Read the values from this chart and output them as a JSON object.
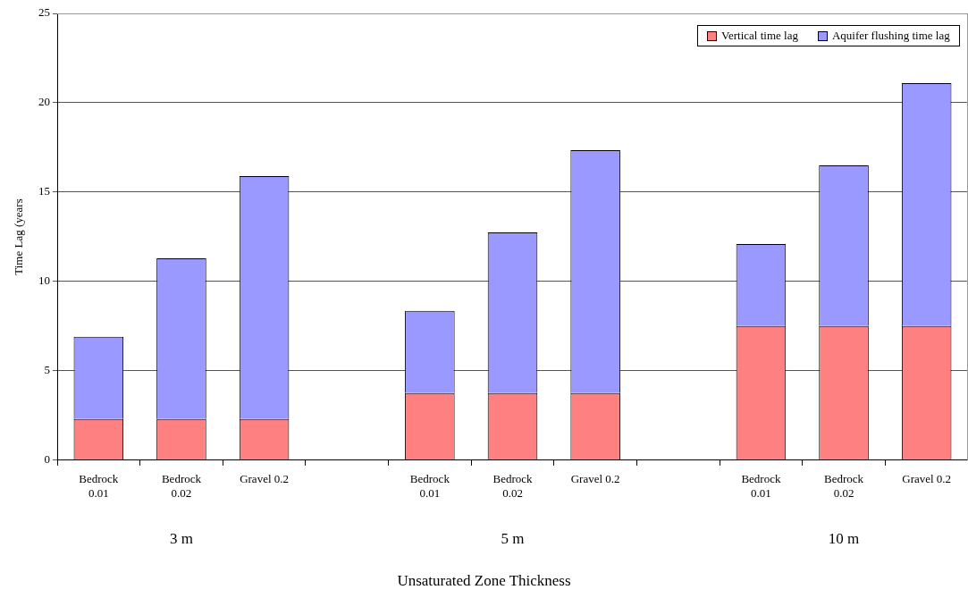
{
  "chart_data": {
    "type": "bar",
    "stacked": true,
    "categories": [
      "Bedrock 0.01",
      "Bedrock 0.02",
      "Gravel 0.2",
      null,
      "Bedrock 0.01",
      "Bedrock 0.02",
      "Gravel 0.2",
      null,
      "Bedrock 0.01",
      "Bedrock 0.02",
      "Gravel 0.2"
    ],
    "series": [
      {
        "name": "Vertical time lag",
        "color": "#ff8080",
        "values": [
          2.3,
          2.3,
          2.3,
          null,
          3.75,
          3.75,
          3.75,
          null,
          7.5,
          7.5,
          7.5
        ]
      },
      {
        "name": "Aquifer flushing time lag",
        "color": "#9999ff",
        "values": [
          4.6,
          9.0,
          13.6,
          null,
          4.6,
          9.0,
          13.6,
          null,
          4.6,
          9.0,
          13.6
        ]
      }
    ],
    "ylabel": "Time Lag (years",
    "xlabel": "Unsaturated Zone Thickness",
    "annotations": [
      "3 m",
      "5 m",
      "10 m"
    ],
    "ylim": [
      0,
      25
    ],
    "yticks": [
      0,
      5,
      10,
      15,
      20,
      25
    ],
    "grid": "y",
    "legend": "top right"
  }
}
